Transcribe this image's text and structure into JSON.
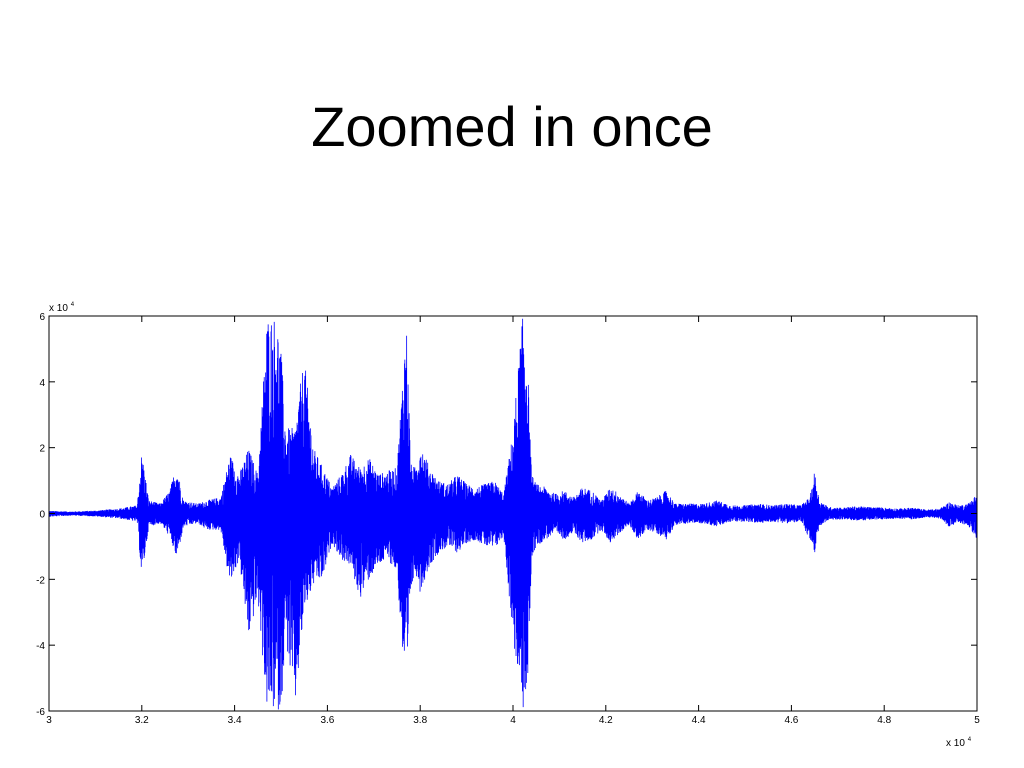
{
  "slide": {
    "title": "Zoomed in once"
  },
  "chart_data": {
    "type": "line",
    "title": "",
    "xlabel": "",
    "ylabel": "",
    "xlim": [
      30000,
      50000
    ],
    "ylim": [
      -60000,
      60000
    ],
    "x_scale_label": {
      "base": "x 10",
      "exponent": "4"
    },
    "y_scale_label": {
      "base": "x 10",
      "exponent": "4"
    },
    "x_ticks": [
      30000,
      32000,
      34000,
      36000,
      38000,
      40000,
      42000,
      44000,
      46000,
      48000,
      50000
    ],
    "x_tick_labels": [
      "3",
      "3.2",
      "3.4",
      "3.6",
      "3.8",
      "4",
      "4.2",
      "4.4",
      "4.6",
      "4.8",
      "5"
    ],
    "y_ticks": [
      -60000,
      -40000,
      -20000,
      0,
      20000,
      40000,
      60000
    ],
    "y_tick_labels": [
      "-6",
      "-4",
      "-2",
      "0",
      "2",
      "4",
      "6"
    ],
    "grid": false,
    "series_color": "#0000ff",
    "series": [
      {
        "envelope_x": [
          30000,
          30500,
          31000,
          31500,
          31900,
          32000,
          32150,
          32400,
          32600,
          32750,
          32900,
          33200,
          33400,
          33700,
          33900,
          34100,
          34300,
          34500,
          34700,
          34800,
          34900,
          35000,
          35100,
          35300,
          35500,
          35700,
          35900,
          36100,
          36300,
          36500,
          36700,
          36900,
          37100,
          37300,
          37500,
          37700,
          37800,
          37900,
          38000,
          38200,
          38400,
          38600,
          38800,
          39000,
          39200,
          39400,
          39600,
          39800,
          40000,
          40200,
          40300,
          40400,
          40500,
          40700,
          40900,
          41100,
          41300,
          41500,
          41700,
          41900,
          42100,
          42300,
          42500,
          42700,
          42900,
          43100,
          43300,
          43500,
          43800,
          44100,
          44400,
          44700,
          45000,
          45300,
          45600,
          45900,
          46200,
          46400,
          46500,
          46600,
          46800,
          47100,
          47400,
          47700,
          48000,
          48300,
          48600,
          48900,
          49200,
          49400,
          49600,
          49800,
          50000
        ],
        "envelope_upper": [
          800,
          600,
          900,
          1500,
          2500,
          19000,
          4000,
          3000,
          7000,
          15000,
          4000,
          3000,
          4000,
          5000,
          18000,
          12000,
          20000,
          12000,
          60000,
          60000,
          60000,
          50000,
          26000,
          26000,
          48000,
          20000,
          14000,
          8000,
          12000,
          18000,
          14000,
          17000,
          12000,
          13000,
          14000,
          60000,
          15000,
          14000,
          22000,
          14000,
          10000,
          9000,
          12000,
          9000,
          8000,
          9000,
          10000,
          6000,
          25000,
          60000,
          52000,
          12000,
          9000,
          8000,
          6000,
          7000,
          5000,
          8000,
          7000,
          4000,
          8000,
          6000,
          3000,
          7000,
          4000,
          5000,
          7000,
          3000,
          3000,
          3000,
          4000,
          2500,
          2500,
          3000,
          2500,
          3000,
          2500,
          5000,
          13000,
          4000,
          2000,
          1800,
          2200,
          2000,
          1800,
          1500,
          1800,
          1200,
          1500,
          3500,
          2500,
          3000,
          6000
        ],
        "envelope_lower": [
          -1000,
          -600,
          -900,
          -1500,
          -2500,
          -20000,
          -4000,
          -3000,
          -7000,
          -14000,
          -4000,
          -3000,
          -5000,
          -5000,
          -22000,
          -14000,
          -38000,
          -26000,
          -60000,
          -60000,
          -60000,
          -60000,
          -38000,
          -60000,
          -30000,
          -22000,
          -20000,
          -9000,
          -14000,
          -16000,
          -26000,
          -20000,
          -16000,
          -14000,
          -18000,
          -60000,
          -24000,
          -18000,
          -24000,
          -16000,
          -12000,
          -10000,
          -12000,
          -9000,
          -8000,
          -10000,
          -11000,
          -7000,
          -38000,
          -60000,
          -60000,
          -14000,
          -10000,
          -8000,
          -6000,
          -8000,
          -6000,
          -9000,
          -8000,
          -5000,
          -9000,
          -6000,
          -3500,
          -8000,
          -5000,
          -6000,
          -8000,
          -3500,
          -3000,
          -3000,
          -4000,
          -2500,
          -2500,
          -3000,
          -2500,
          -3000,
          -2500,
          -8000,
          -14000,
          -4000,
          -2000,
          -1800,
          -2200,
          -2000,
          -1800,
          -1500,
          -1800,
          -1200,
          -1500,
          -4000,
          -3000,
          -3500,
          -8000
        ]
      }
    ]
  }
}
